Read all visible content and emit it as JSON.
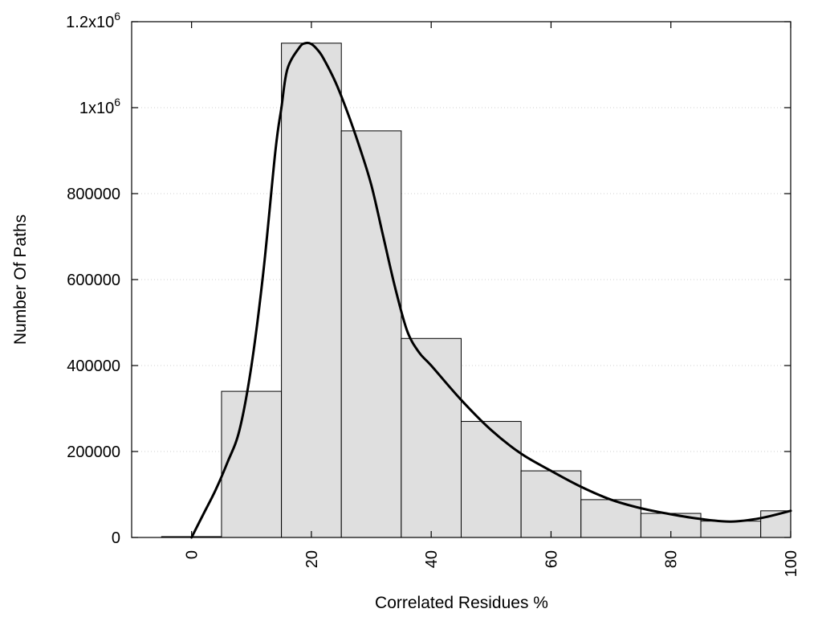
{
  "chart_data": {
    "type": "bar",
    "xlabel": "Correlated Residues %",
    "ylabel": "Number Of Paths",
    "xlim": [
      -10,
      100
    ],
    "ylim": [
      0,
      1200000
    ],
    "bin_width": 10,
    "x": [
      0,
      10,
      20,
      30,
      40,
      50,
      60,
      70,
      80,
      90,
      100
    ],
    "values": [
      2000,
      340000,
      1150000,
      946000,
      463000,
      270000,
      155000,
      88000,
      56000,
      38000,
      62000
    ],
    "bar_color": "#dfdfdf",
    "grid": true,
    "x_ticks": [
      {
        "value": 0,
        "label": "0"
      },
      {
        "value": 20,
        "label": "20"
      },
      {
        "value": 40,
        "label": "40"
      },
      {
        "value": 60,
        "label": "60"
      },
      {
        "value": 80,
        "label": "80"
      },
      {
        "value": 100,
        "label": "100"
      }
    ],
    "y_ticks": [
      {
        "value": 0,
        "label": "0",
        "sup": ""
      },
      {
        "value": 200000,
        "label": "200000",
        "sup": ""
      },
      {
        "value": 400000,
        "label": "400000",
        "sup": ""
      },
      {
        "value": 600000,
        "label": "600000",
        "sup": ""
      },
      {
        "value": 800000,
        "label": "800000",
        "sup": ""
      },
      {
        "value": 1000000,
        "label": "1x10",
        "sup": "6"
      },
      {
        "value": 1200000,
        "label": "1.2x10",
        "sup": "6"
      }
    ],
    "curve": {
      "x": [
        0,
        2,
        4,
        6,
        8,
        10,
        12,
        14,
        15,
        16,
        18,
        19,
        20,
        21,
        22,
        24,
        26,
        28,
        30,
        32,
        34,
        36,
        38,
        40,
        45,
        50,
        55,
        60,
        65,
        70,
        75,
        80,
        85,
        90,
        95,
        100
      ],
      "y": [
        0,
        55000,
        110000,
        175000,
        250000,
        400000,
        620000,
        900000,
        1000000,
        1090000,
        1140000,
        1150000,
        1148000,
        1135000,
        1115000,
        1060000,
        990000,
        910000,
        820000,
        700000,
        580000,
        480000,
        430000,
        400000,
        320000,
        250000,
        195000,
        155000,
        118000,
        88000,
        68000,
        54000,
        43000,
        37000,
        45000,
        62000
      ]
    }
  }
}
